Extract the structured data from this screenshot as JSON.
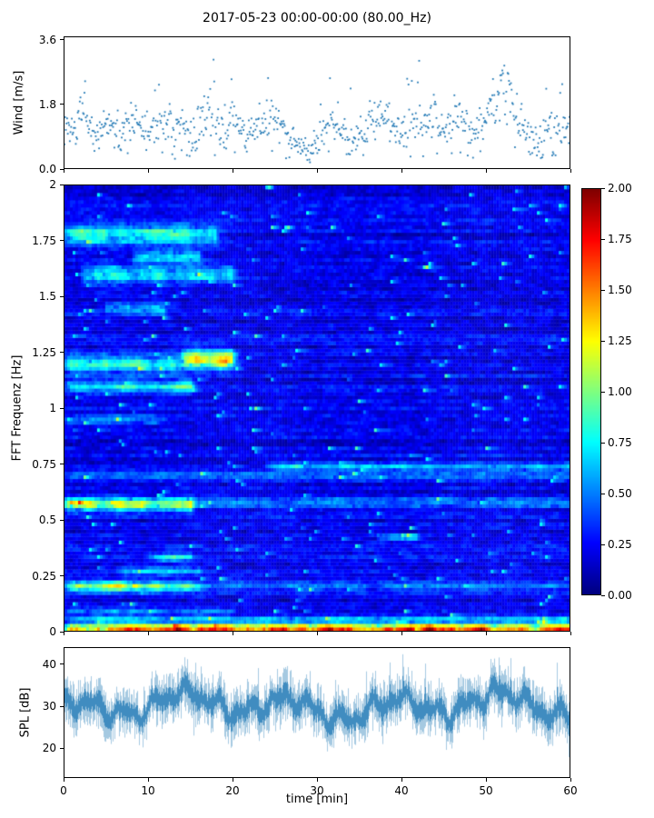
{
  "title": "2017-05-23 00:00-00:00 (80.00_Hz)",
  "chart_data": [
    {
      "type": "scatter",
      "name": "wind-speed",
      "ylabel": "Wind [m/s]",
      "ylim": [
        0.0,
        3.7
      ],
      "yticks": [
        3.6,
        1.8,
        0.0
      ],
      "ytick_labels": [
        "3.6",
        "1.8",
        "0.0"
      ],
      "xlim": [
        0,
        60
      ],
      "marker_color": "#1f77b4",
      "n_points": 760,
      "seed": 7,
      "noise_sd": 0.28,
      "mean_per_min": [
        1.3,
        1.0,
        1.4,
        1.1,
        0.9,
        1.2,
        1.0,
        1.3,
        1.5,
        1.1,
        0.9,
        1.2,
        1.4,
        1.0,
        1.2,
        0.9,
        1.3,
        1.6,
        1.2,
        1.0,
        1.4,
        1.2,
        0.9,
        1.1,
        1.3,
        1.5,
        1.1,
        0.8,
        0.6,
        0.5,
        0.8,
        1.2,
        1.5,
        1.1,
        0.7,
        1.0,
        1.3,
        1.1,
        1.5,
        1.2,
        0.9,
        1.3,
        1.6,
        1.2,
        1.5,
        1.1,
        1.4,
        1.7,
        1.2,
        1.0,
        1.5,
        1.9,
        2.2,
        2.0,
        1.4,
        0.9,
        0.7,
        1.0,
        1.3,
        1.1,
        1.2
      ]
    },
    {
      "type": "heatmap",
      "name": "spectrogram",
      "ylabel": "FFT Frequenz [Hz]",
      "ylim": [
        0,
        2
      ],
      "yticks": [
        2,
        1.75,
        1.5,
        1.25,
        1,
        0.75,
        0.5,
        0.25,
        0
      ],
      "ytick_labels": [
        "2",
        "1.75",
        "1.5",
        "1.25",
        "1",
        "0.75",
        "0.5",
        "0.25",
        "0"
      ],
      "xlim": [
        0,
        60
      ],
      "colormap": "jet",
      "clim": [
        0,
        2
      ],
      "colorbar": {
        "ticks": [
          2.0,
          1.75,
          1.5,
          1.25,
          1.0,
          0.75,
          0.5,
          0.25,
          0.0
        ],
        "tick_labels": [
          "2.00",
          "1.75",
          "1.50",
          "1.25",
          "1.00",
          "0.75",
          "0.50",
          "0.25",
          "0.00"
        ]
      },
      "time_bins": 186,
      "freq_bins": 123,
      "background": {
        "base": 0.22,
        "noise": 0.16,
        "seed": 99
      },
      "features": [
        {
          "f": 0.012,
          "w": 0.018,
          "t0": 0,
          "t1": 60,
          "amp": 1.5
        },
        {
          "f": 0.05,
          "w": 0.015,
          "t0": 0,
          "t1": 60,
          "amp": 0.45
        },
        {
          "f": 0.09,
          "w": 0.015,
          "t0": 0,
          "t1": 20,
          "amp": 0.35
        },
        {
          "f": 0.2,
          "w": 0.022,
          "t0": 0,
          "t1": 16,
          "amp": 0.95
        },
        {
          "f": 0.2,
          "w": 0.02,
          "t0": 16,
          "t1": 60,
          "amp": 0.3
        },
        {
          "f": 0.27,
          "w": 0.02,
          "t0": 6,
          "t1": 16,
          "amp": 0.45
        },
        {
          "f": 0.33,
          "w": 0.018,
          "t0": 10,
          "t1": 15,
          "amp": 0.5
        },
        {
          "f": 0.42,
          "w": 0.015,
          "t0": 37,
          "t1": 42,
          "amp": 0.45
        },
        {
          "f": 0.57,
          "w": 0.03,
          "t0": 0,
          "t1": 15,
          "amp": 0.95
        },
        {
          "f": 0.58,
          "w": 0.025,
          "t0": 15,
          "t1": 60,
          "amp": 0.28
        },
        {
          "f": 0.7,
          "w": 0.02,
          "t0": 0,
          "t1": 60,
          "amp": 0.22
        },
        {
          "f": 0.74,
          "w": 0.02,
          "t0": 24,
          "t1": 60,
          "amp": 0.4
        },
        {
          "f": 0.95,
          "w": 0.02,
          "t0": 0,
          "t1": 12,
          "amp": 0.3
        },
        {
          "f": 1.1,
          "w": 0.03,
          "t0": 0,
          "t1": 15,
          "amp": 0.55
        },
        {
          "f": 1.2,
          "w": 0.04,
          "t0": 0,
          "t1": 14,
          "amp": 0.65
        },
        {
          "f": 1.22,
          "w": 0.04,
          "t0": 14,
          "t1": 20,
          "amp": 1.05
        },
        {
          "f": 1.45,
          "w": 0.03,
          "t0": 5,
          "t1": 12,
          "amp": 0.4
        },
        {
          "f": 1.6,
          "w": 0.04,
          "t0": 2,
          "t1": 20,
          "amp": 0.55
        },
        {
          "f": 1.68,
          "w": 0.03,
          "t0": 8,
          "t1": 16,
          "amp": 0.55
        },
        {
          "f": 1.78,
          "w": 0.04,
          "t0": 0,
          "t1": 18,
          "amp": 0.65
        }
      ]
    },
    {
      "type": "line",
      "name": "sound-pressure-level",
      "ylabel": "SPL [dB]",
      "xlabel": "time [min]",
      "ylim": [
        13,
        44
      ],
      "yticks": [
        40,
        30,
        20
      ],
      "ytick_labels": [
        "40",
        "30",
        "20"
      ],
      "xlim": [
        0,
        60
      ],
      "xticks": [
        0,
        10,
        20,
        30,
        40,
        50,
        60
      ],
      "xtick_labels": [
        "0",
        "10",
        "20",
        "30",
        "40",
        "50",
        "60"
      ],
      "color": "#1f77b4",
      "seed": 21,
      "mean": 30,
      "range": [
        16,
        42
      ]
    }
  ]
}
